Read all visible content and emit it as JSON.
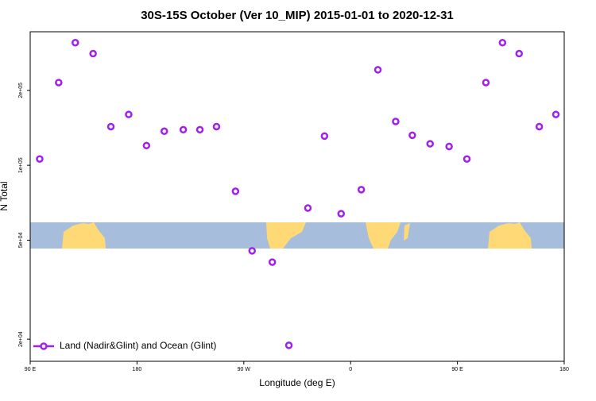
{
  "chart_data": {
    "type": "scatter",
    "title": "30S-15S October (Ver 10_MIP)   2015-01-01 to 2020-12-31",
    "x_label": "Longitude (deg E)",
    "y_label": "N Total",
    "y_log": true,
    "legend": "lower left",
    "xlim": [
      90,
      540
    ],
    "ylim": [
      16300,
      344000
    ],
    "xticks": [
      {
        "value": 90,
        "label": "90 E"
      },
      {
        "value": 180,
        "label": "180"
      },
      {
        "value": 270,
        "label": "90 W"
      },
      {
        "value": 360,
        "label": "0"
      },
      {
        "value": 450,
        "label": "90 E"
      },
      {
        "value": 540,
        "label": "180"
      }
    ],
    "yticks": [
      {
        "value": 20000,
        "label": "2e+04"
      },
      {
        "value": 50000,
        "label": "5e+04"
      },
      {
        "value": 100000,
        "label": "1e+05"
      },
      {
        "value": 200000,
        "label": "2e+05"
      }
    ],
    "series": [
      {
        "name": "Land (Nadir&Glint) and Ocean (Glint)",
        "color": "#a020f0",
        "x": [
          98,
          114,
          128,
          143,
          158,
          173,
          188,
          203,
          219,
          233,
          247,
          263,
          277,
          294,
          308,
          324,
          338,
          352,
          369,
          383,
          398,
          412,
          427,
          443,
          458,
          474,
          488,
          502,
          519,
          533
        ],
        "values": [
          106000,
          215000,
          311000,
          281000,
          143000,
          160000,
          120000,
          137000,
          139000,
          139000,
          143000,
          78600,
          45300,
          40800,
          18900,
          67300,
          131000,
          63900,
          79800,
          242000,
          150000,
          132000,
          122000,
          119000,
          106000,
          215000,
          311000,
          281000,
          143000,
          160000
        ]
      }
    ]
  }
}
